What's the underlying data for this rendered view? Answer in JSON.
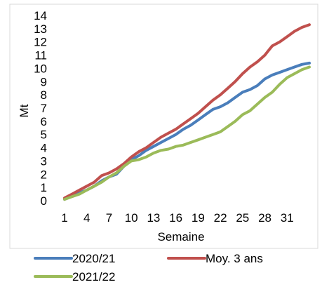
{
  "chart_data": {
    "type": "line",
    "title": "",
    "xlabel": "Semaine",
    "ylabel": "Mt",
    "xlim": [
      1,
      34
    ],
    "ylim": [
      0,
      14
    ],
    "x_ticks": [
      1,
      4,
      7,
      10,
      13,
      16,
      19,
      22,
      25,
      28,
      31
    ],
    "y_ticks": [
      0,
      1,
      2,
      3,
      4,
      5,
      6,
      7,
      8,
      9,
      10,
      11,
      12,
      13,
      14
    ],
    "grid": false,
    "legend_position": "bottom",
    "x": [
      1,
      2,
      3,
      4,
      5,
      6,
      7,
      8,
      9,
      10,
      11,
      12,
      13,
      14,
      15,
      16,
      17,
      18,
      19,
      20,
      21,
      22,
      23,
      24,
      25,
      26,
      27,
      28,
      29,
      30,
      31,
      32,
      33,
      34
    ],
    "series": [
      {
        "name": "2020/21",
        "color": "#4a7ebb",
        "values": [
          0.1,
          0.4,
          0.6,
          0.8,
          1.1,
          1.5,
          1.8,
          2.0,
          2.6,
          3.1,
          3.4,
          3.8,
          4.1,
          4.4,
          4.7,
          5.0,
          5.4,
          5.7,
          6.1,
          6.5,
          6.9,
          7.1,
          7.4,
          7.8,
          8.2,
          8.4,
          8.7,
          9.2,
          9.5,
          9.7,
          9.9,
          10.1,
          10.3,
          10.4
        ]
      },
      {
        "name": "Moy. 3 ans",
        "color": "#c0504d",
        "values": [
          0.2,
          0.5,
          0.8,
          1.1,
          1.4,
          1.9,
          2.1,
          2.4,
          2.8,
          3.3,
          3.7,
          4.0,
          4.4,
          4.8,
          5.1,
          5.4,
          5.8,
          6.2,
          6.6,
          7.1,
          7.6,
          8.0,
          8.5,
          9.0,
          9.6,
          10.1,
          10.5,
          11.0,
          11.7,
          12.0,
          12.4,
          12.8,
          13.1,
          13.3
        ]
      },
      {
        "name": "2021/22",
        "color": "#9bbb59",
        "values": [
          0.1,
          0.3,
          0.5,
          0.8,
          1.1,
          1.4,
          1.8,
          2.1,
          2.6,
          3.0,
          3.1,
          3.3,
          3.6,
          3.8,
          3.9,
          4.1,
          4.2,
          4.4,
          4.6,
          4.8,
          5.0,
          5.2,
          5.6,
          6.0,
          6.5,
          6.8,
          7.3,
          7.8,
          8.2,
          8.8,
          9.3,
          9.6,
          9.9,
          10.1
        ]
      }
    ]
  }
}
